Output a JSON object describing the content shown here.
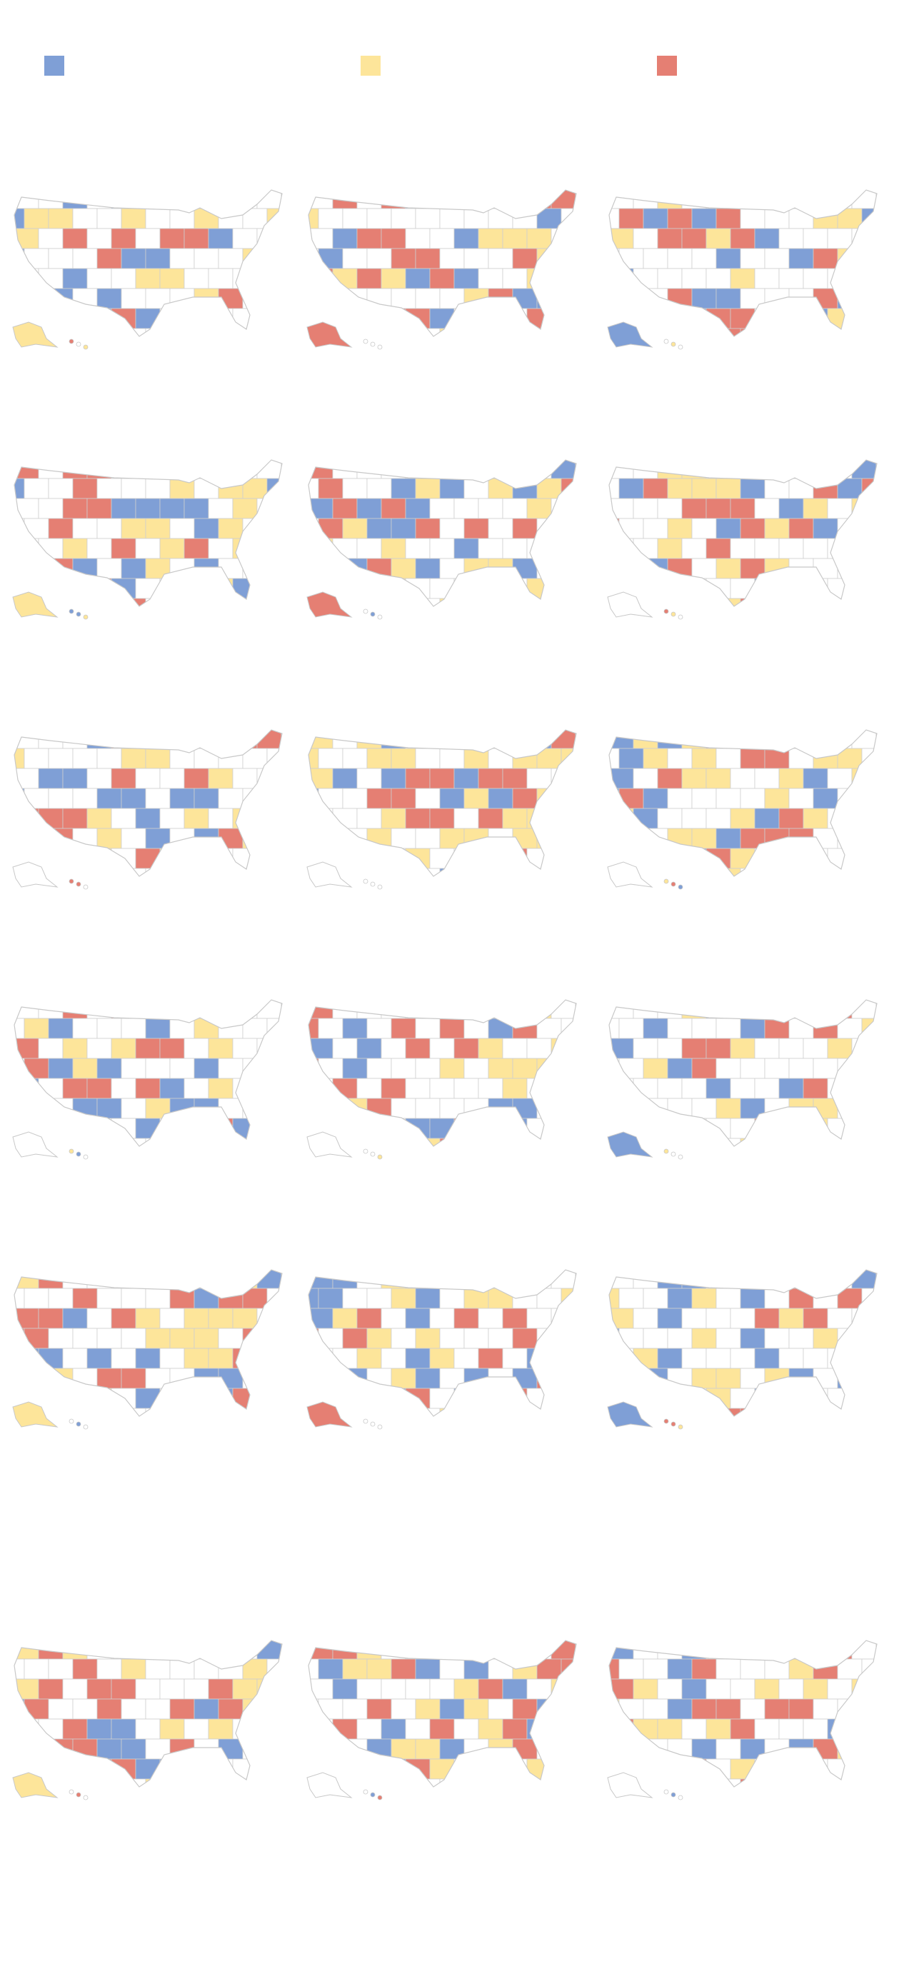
{
  "legend": {
    "colors": [
      "#7f9fd6",
      "#fde59a",
      "#e57f73"
    ]
  }
}
